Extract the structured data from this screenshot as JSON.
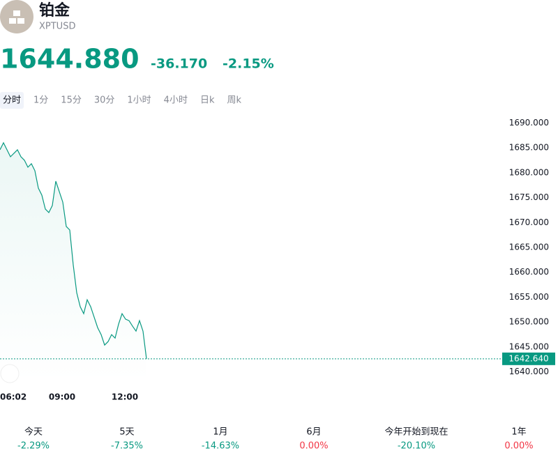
{
  "header": {
    "title": "铂金",
    "symbol": "XPTUSD",
    "price": "1644.880",
    "change": "-36.170",
    "change_pct": "-2.15%"
  },
  "tabs": [
    "分时",
    "1分",
    "15分",
    "30分",
    "1小时",
    "4小时",
    "日k",
    "周k"
  ],
  "chart_data": {
    "type": "line",
    "color": "#089981",
    "x": [
      "06:02",
      "06:12",
      "06:22",
      "06:32",
      "06:42",
      "06:52",
      "07:02",
      "07:12",
      "07:22",
      "07:32",
      "07:42",
      "07:52",
      "08:02",
      "08:12",
      "08:22",
      "08:32",
      "08:42",
      "08:52",
      "09:02",
      "09:12",
      "09:22",
      "09:32",
      "09:42",
      "09:52",
      "10:02",
      "10:12",
      "10:22",
      "10:32",
      "10:42",
      "10:52",
      "11:02",
      "11:12",
      "11:22",
      "11:32",
      "11:42",
      "11:52",
      "12:02",
      "12:12",
      "12:22",
      "12:32",
      "12:42",
      "12:52",
      "13:02"
    ],
    "values": [
      1684.6,
      1686,
      1684.6,
      1683.2,
      1683.9,
      1684.6,
      1683.2,
      1682.5,
      1681.1,
      1681.8,
      1680.4,
      1676.9,
      1675.5,
      1672.7,
      1672,
      1673.4,
      1678.3,
      1676.2,
      1674.1,
      1669.2,
      1668.5,
      1661.5,
      1655.9,
      1653.1,
      1651.7,
      1654.5,
      1653.1,
      1651,
      1648.9,
      1647.5,
      1645.4,
      1646.1,
      1647.5,
      1646.8,
      1649.6,
      1651.7,
      1650.6,
      1650.3,
      1649.2,
      1648.2,
      1650.3,
      1648.2,
      1642.64
    ],
    "ylim": [
      1638,
      1692
    ],
    "yticks": [
      {
        "value": 1640,
        "label": "1640.000"
      },
      {
        "value": 1645,
        "label": "1645.000"
      },
      {
        "value": 1650,
        "label": "1650.000"
      },
      {
        "value": 1655,
        "label": "1655.000"
      },
      {
        "value": 1660,
        "label": "1660.000"
      },
      {
        "value": 1665,
        "label": "1665.000"
      },
      {
        "value": 1670,
        "label": "1670.000"
      },
      {
        "value": 1675,
        "label": "1675.000"
      },
      {
        "value": 1680,
        "label": "1680.000"
      },
      {
        "value": 1685,
        "label": "1685.000"
      },
      {
        "value": 1690,
        "label": "1690.000"
      }
    ],
    "xticks": [
      "06:02",
      "09:00",
      "12:00"
    ],
    "last_label": {
      "value": 1642.64,
      "label": "1642.640"
    }
  },
  "performance": [
    {
      "period": "今天",
      "value": "-2.29%",
      "color": "#089981"
    },
    {
      "period": "5天",
      "value": "-7.35%",
      "color": "#089981"
    },
    {
      "period": "1月",
      "value": "-14.63%",
      "color": "#089981"
    },
    {
      "period": "6月",
      "value": "0.00%",
      "color": "#f23645"
    },
    {
      "period": "今年开始到现在",
      "value": "-20.10%",
      "color": "#089981"
    },
    {
      "period": "1年",
      "value": "0.00%",
      "color": "#f23645"
    }
  ]
}
